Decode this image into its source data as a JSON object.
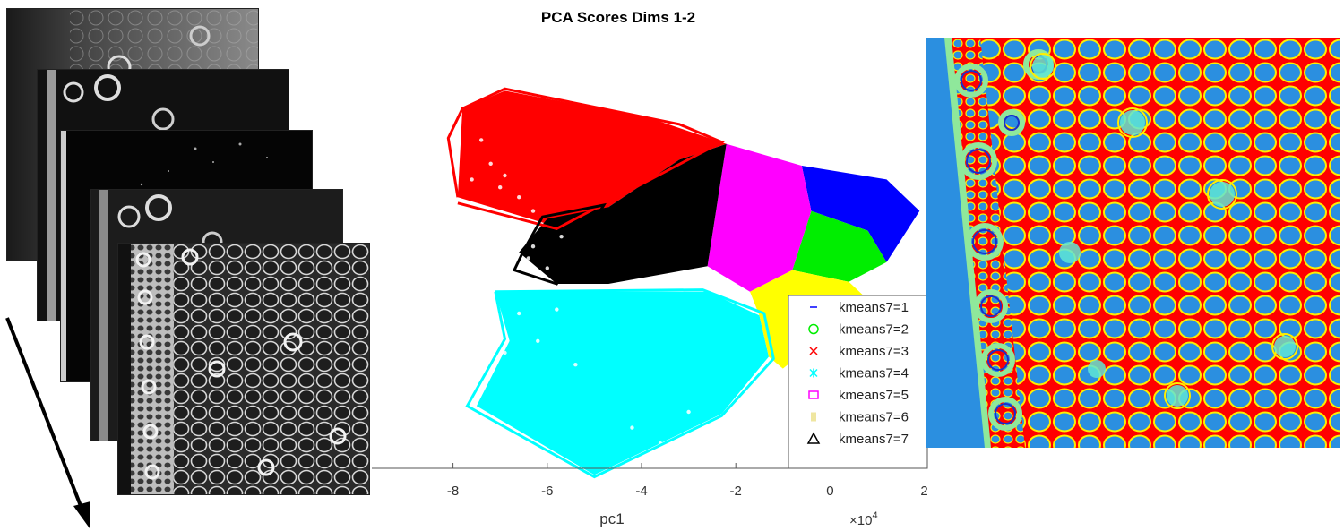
{
  "stack": {
    "slices": [
      {
        "id": "s1",
        "tone": "#3c3c3c"
      },
      {
        "id": "s2",
        "tone": "#181818"
      },
      {
        "id": "s3",
        "tone": "#050505"
      },
      {
        "id": "s4",
        "tone": "#1c1c1c"
      },
      {
        "id": "s5",
        "tone": "#262626"
      }
    ],
    "arrow_color": "#000000"
  },
  "chart_data": {
    "type": "scatter",
    "title": "PCA Scores Dims 1-2",
    "xlabel": "pc1",
    "x_exponent_label": "×10",
    "x_exponent_power": "4",
    "ylabel": "",
    "xlim": [
      -9,
      2.5
    ],
    "ylim": [
      -10,
      10
    ],
    "xticks": [
      -8,
      -6,
      -4,
      -2,
      0,
      2
    ],
    "xtick_labels": [
      "-8",
      "-6",
      "-4",
      "-2",
      "0",
      "2"
    ],
    "legend_position": "bottom-right",
    "series": [
      {
        "name": "kmeans7=1",
        "marker": "line",
        "color": "#0000ff",
        "region": [
          [
            -0.6,
            5.5
          ],
          [
            1.2,
            4.8
          ],
          [
            1.9,
            3.2
          ],
          [
            1.2,
            0.6
          ],
          [
            0.8,
            2.2
          ],
          [
            -0.4,
            3.2
          ]
        ]
      },
      {
        "name": "kmeans7=2",
        "marker": "circle",
        "color": "#00ee00",
        "region": [
          [
            -0.4,
            3.2
          ],
          [
            0.8,
            2.2
          ],
          [
            1.2,
            0.6
          ],
          [
            0.4,
            -0.4
          ],
          [
            -0.8,
            0.2
          ]
        ]
      },
      {
        "name": "kmeans7=3",
        "marker": "x",
        "color": "#ff0000",
        "region": [
          [
            -7.8,
            8.4
          ],
          [
            -6.9,
            9.3
          ],
          [
            -3.8,
            7.9
          ],
          [
            -2.2,
            6.6
          ],
          [
            -3.2,
            5.8
          ],
          [
            -4.7,
            3.4
          ],
          [
            -5.8,
            2.4
          ],
          [
            -7.9,
            3.9
          ]
        ]
      },
      {
        "name": "kmeans7=4",
        "marker": "asterisk",
        "color": "#00ffff",
        "region": [
          [
            -7.1,
            -0.9
          ],
          [
            -2.6,
            -0.9
          ],
          [
            -1.5,
            -2.1
          ],
          [
            -1.3,
            -4.2
          ],
          [
            -2.3,
            -7.1
          ],
          [
            -5.0,
            -10.2
          ],
          [
            -7.5,
            -6.7
          ],
          [
            -6.8,
            -3.4
          ]
        ]
      },
      {
        "name": "kmeans7=5",
        "marker": "square",
        "color": "#ff00ff",
        "region": [
          [
            -2.2,
            6.6
          ],
          [
            -0.6,
            5.5
          ],
          [
            -0.4,
            3.2
          ],
          [
            -0.8,
            0.2
          ],
          [
            -1.7,
            -0.9
          ],
          [
            -2.6,
            0.4
          ]
        ]
      },
      {
        "name": "kmeans7=6",
        "marker": "dot",
        "color": "#ffff00",
        "region": [
          [
            -1.7,
            -0.9
          ],
          [
            -0.8,
            0.2
          ],
          [
            0.4,
            -0.4
          ],
          [
            0.8,
            -1.3
          ],
          [
            -1.0,
            -4.8
          ],
          [
            -1.3,
            -4.2
          ],
          [
            -1.5,
            -2.1
          ]
        ]
      },
      {
        "name": "kmeans7=7",
        "marker": "triangle",
        "color": "#000000",
        "region": [
          [
            -2.2,
            6.6
          ],
          [
            -2.6,
            0.4
          ],
          [
            -4.7,
            -0.5
          ],
          [
            -5.8,
            -0.5
          ],
          [
            -6.6,
            1.1
          ],
          [
            -6.0,
            2.8
          ],
          [
            -4.7,
            3.4
          ],
          [
            -3.2,
            5.8
          ]
        ]
      }
    ]
  },
  "map": {
    "background": "#ff0000",
    "cell_color": "#2b8fe0",
    "boundary_color": "#ffee00",
    "strip_color": "#2b8fe0",
    "ring_color": "#8fe89b",
    "ring_inner_color": "#1a30c8"
  }
}
